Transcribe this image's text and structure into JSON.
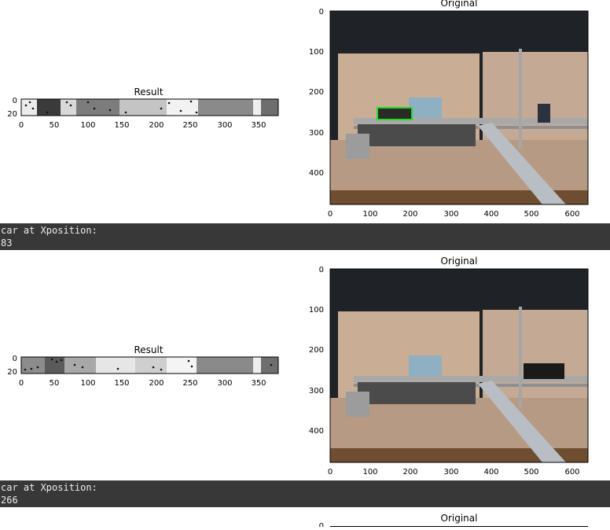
{
  "cells": [
    {
      "result": {
        "title": "Result",
        "xticks": [
          "0",
          "50",
          "100",
          "150",
          "200",
          "250",
          "300",
          "350"
        ],
        "yticks": [
          "0",
          "20"
        ]
      },
      "original": {
        "title": "Original",
        "xticks": [
          "0",
          "100",
          "200",
          "300",
          "400",
          "500",
          "600"
        ],
        "yticks": [
          "0",
          "100",
          "200",
          "300",
          "400"
        ]
      },
      "output": {
        "line1": "car at Xposition:",
        "line2": "83"
      }
    },
    {
      "result": {
        "title": "Result",
        "xticks": [
          "0",
          "50",
          "100",
          "150",
          "200",
          "250",
          "300",
          "350"
        ],
        "yticks": [
          "0",
          "20"
        ]
      },
      "original": {
        "title": "Original",
        "xticks": [
          "0",
          "100",
          "200",
          "300",
          "400",
          "500",
          "600"
        ],
        "yticks": [
          "0",
          "100",
          "200",
          "300",
          "400"
        ]
      },
      "output": {
        "line1": "car at Xposition:",
        "line2": "266"
      }
    },
    {
      "original": {
        "title": "Original",
        "yticks": [
          "0"
        ]
      }
    }
  ],
  "colors": {
    "output_bg": "#383838",
    "detection_box": "#22dd22"
  }
}
